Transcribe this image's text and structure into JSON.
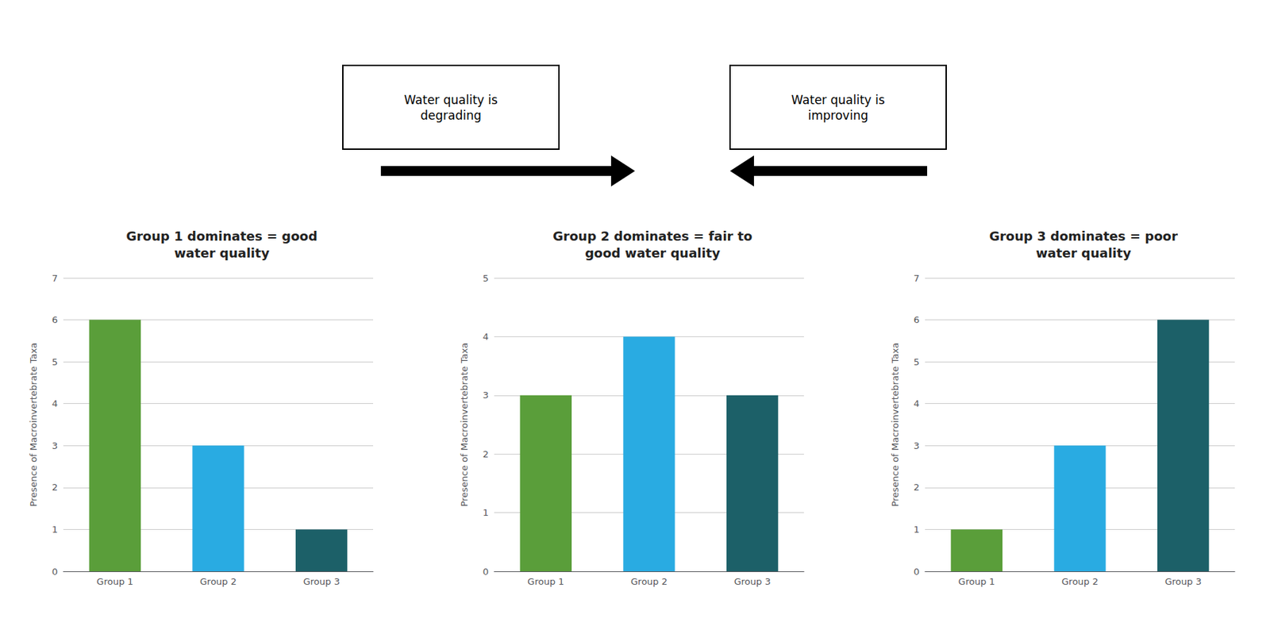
{
  "chart_data": [
    {
      "type": "bar",
      "title": "Group 1 dominates = good\nwater quality",
      "ylabel": "Presence of Macroinvertebrate Taxa",
      "categories": [
        "Group 1",
        "Group 2",
        "Group 3"
      ],
      "values": [
        6,
        3,
        1
      ],
      "colors": [
        "#5a9e3a",
        "#29abe2",
        "#1c6068"
      ],
      "ylim": [
        0,
        7
      ],
      "yticks": [
        0,
        1,
        2,
        3,
        4,
        5,
        6,
        7
      ],
      "grid": true
    },
    {
      "type": "bar",
      "title": "Group 2 dominates = fair to\ngood water quality",
      "ylabel": "Presence of Macroinvertebrate Taxa",
      "categories": [
        "Group 1",
        "Group 2",
        "Group 3"
      ],
      "values": [
        3,
        4,
        3
      ],
      "colors": [
        "#5a9e3a",
        "#29abe2",
        "#1c6068"
      ],
      "ylim": [
        0,
        5
      ],
      "yticks": [
        0,
        1,
        2,
        3,
        4,
        5
      ],
      "grid": true
    },
    {
      "type": "bar",
      "title": "Group 3 dominates = poor\nwater quality",
      "ylabel": "Presence of Macroinvertebrate Taxa",
      "categories": [
        "Group 1",
        "Group 2",
        "Group 3"
      ],
      "values": [
        1,
        3,
        6
      ],
      "colors": [
        "#5a9e3a",
        "#29abe2",
        "#1c6068"
      ],
      "ylim": [
        0,
        7
      ],
      "yticks": [
        0,
        1,
        2,
        3,
        4,
        5,
        6,
        7
      ],
      "grid": true
    }
  ],
  "annotations": [
    "Water quality is\ndegrading",
    "Water quality is\nimproving"
  ]
}
